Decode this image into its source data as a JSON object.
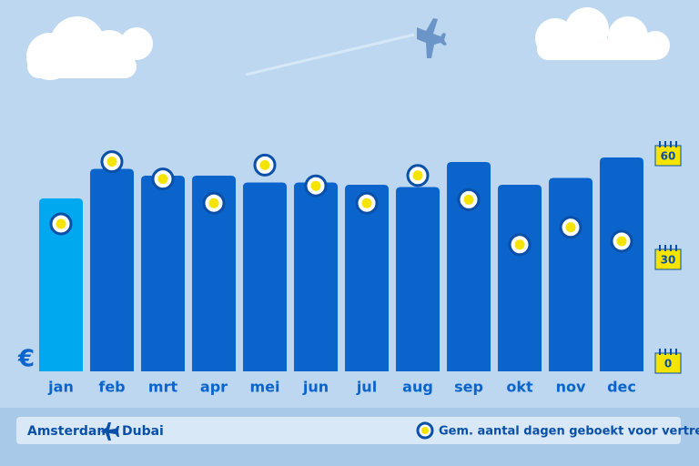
{
  "chart_data": {
    "type": "bar",
    "categories": [
      "jan",
      "feb",
      "mrt",
      "apr",
      "mei",
      "jun",
      "jul",
      "aug",
      "sep",
      "okt",
      "nov",
      "dec"
    ],
    "ylabel": "€",
    "ylim": [
      0,
      100
    ],
    "y2lim": [
      0,
      60
    ],
    "y2ticks": [
      0,
      30,
      60
    ],
    "series": [
      {
        "values": [
          76,
          89,
          86,
          86,
          83,
          83,
          82,
          81,
          92,
          82,
          85,
          94
        ],
        "colors": [
          "#00a8f0",
          "#0a64cc",
          "#0a64cc",
          "#0a64cc",
          "#0a64cc",
          "#0a64cc",
          "#0a64cc",
          "#0a64cc",
          "#0a64cc",
          "#0a64cc",
          "#0a64cc",
          "#0a64cc"
        ]
      },
      {
        "name": "Gem. aantal dagen geboekt voor vertrek",
        "axis": "y2",
        "color": "#f5e400",
        "values": [
          40,
          58,
          53,
          46,
          57,
          51,
          46,
          54,
          47,
          34,
          39,
          35
        ]
      }
    ],
    "route": {
      "from": "Amsterdam",
      "to": "Dubai"
    }
  }
}
